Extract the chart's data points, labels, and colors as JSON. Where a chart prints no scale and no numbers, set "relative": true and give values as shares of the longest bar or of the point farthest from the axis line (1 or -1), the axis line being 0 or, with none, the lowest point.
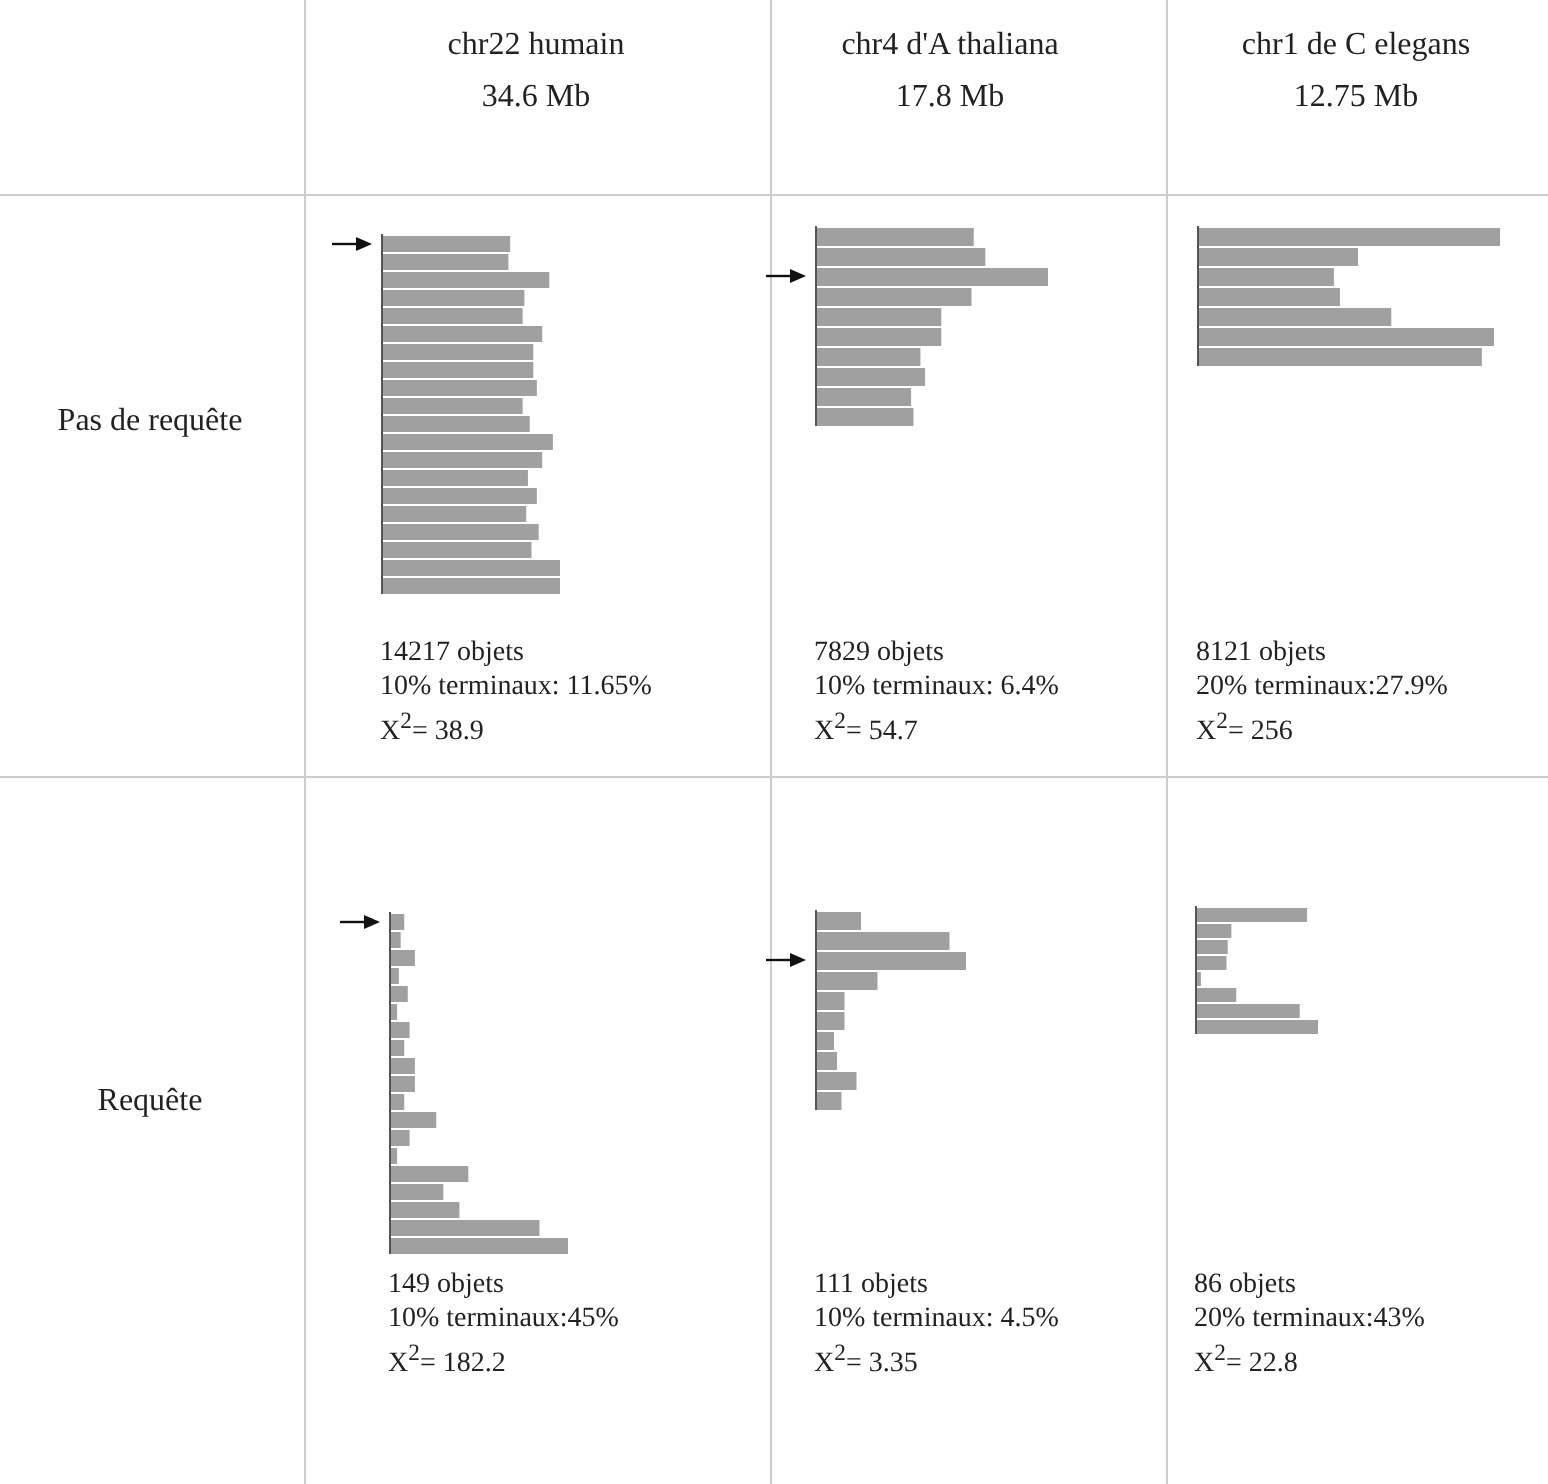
{
  "chart_data": [
    {
      "type": "bar",
      "orientation": "horizontal",
      "relative": true,
      "title": "chr22 humain",
      "subtitle": "34.6 Mb",
      "ylabel": "Pas de requête",
      "color": "#a0a0a0",
      "categories": [
        null,
        null,
        null,
        null,
        null,
        null,
        null,
        null,
        null,
        null,
        null,
        null,
        null,
        null,
        null,
        null,
        null,
        null,
        null,
        null
      ],
      "values": [
        0.72,
        0.71,
        0.94,
        0.8,
        0.79,
        0.9,
        0.85,
        0.85,
        0.87,
        0.79,
        0.83,
        0.96,
        0.9,
        0.82,
        0.87,
        0.81,
        0.88,
        0.84,
        1.0,
        1.0
      ],
      "annotations": [
        "14217 objets",
        "10% terminaux: 11.65%",
        "X$^{2}$= 38.9"
      ]
    },
    {
      "type": "bar",
      "orientation": "horizontal",
      "relative": true,
      "title": "chr4 d'A thaliana",
      "subtitle": "17.8 Mb",
      "color": "#a0a0a0",
      "categories": [
        null,
        null,
        null,
        null,
        null,
        null,
        null,
        null,
        null,
        null
      ],
      "values": [
        0.68,
        0.73,
        1.0,
        0.67,
        0.54,
        0.54,
        0.45,
        0.47,
        0.41,
        0.42
      ],
      "annotations": [
        "7829  objets",
        "10% terminaux: 6.4%",
        "X$^{2}$= 54.7"
      ]
    },
    {
      "type": "bar",
      "orientation": "horizontal",
      "relative": true,
      "title": "chr1 de C elegans",
      "subtitle": "12.75 Mb",
      "color": "#a0a0a0",
      "categories": [
        null,
        null,
        null,
        null,
        null,
        null,
        null
      ],
      "values": [
        1.0,
        0.53,
        0.45,
        0.47,
        0.64,
        0.98,
        0.94
      ],
      "annotations": [
        "8121  objets",
        "20% terminaux:27.9%",
        "X$^{2}$= 256"
      ]
    },
    {
      "type": "bar",
      "orientation": "horizontal",
      "relative": true,
      "ylabel": "Requête",
      "color": "#a0a0a0",
      "categories": [
        null,
        null,
        null,
        null,
        null,
        null,
        null,
        null,
        null,
        null,
        null,
        null,
        null,
        null,
        null,
        null,
        null,
        null,
        null
      ],
      "values": [
        0.08,
        0.06,
        0.14,
        0.05,
        0.1,
        0.04,
        0.11,
        0.08,
        0.14,
        0.14,
        0.08,
        0.26,
        0.11,
        0.04,
        0.44,
        0.3,
        0.39,
        0.84,
        1.0
      ],
      "annotations": [
        "149 objets",
        "10% terminaux:45%",
        "X$^{2}$= 182.2"
      ]
    },
    {
      "type": "bar",
      "orientation": "horizontal",
      "relative": true,
      "color": "#a0a0a0",
      "categories": [
        null,
        null,
        null,
        null,
        null,
        null,
        null,
        null,
        null,
        null
      ],
      "values": [
        0.3,
        0.89,
        1.0,
        0.41,
        0.19,
        0.19,
        0.12,
        0.14,
        0.27,
        0.17
      ],
      "annotations": [
        "111  objets",
        "10% terminaux: 4.5%",
        "X$^{2}$= 3.35"
      ]
    },
    {
      "type": "bar",
      "orientation": "horizontal",
      "relative": true,
      "color": "#a0a0a0",
      "categories": [
        null,
        null,
        null,
        null,
        null,
        null,
        null,
        null
      ],
      "values": [
        0.91,
        0.29,
        0.26,
        0.25,
        0.04,
        0.33,
        0.85,
        1.0
      ],
      "annotations": [
        "86 objets",
        "20% terminaux:43%",
        "X$^{2}$= 22.8"
      ]
    }
  ]
}
